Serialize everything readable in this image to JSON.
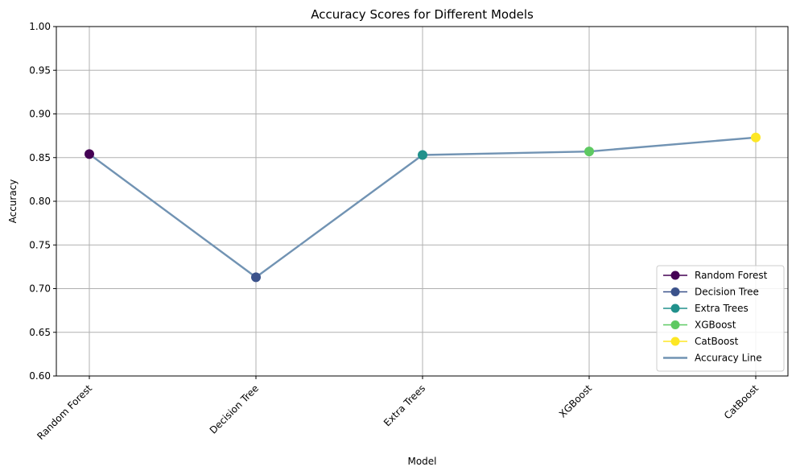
{
  "chart_data": {
    "type": "line",
    "title": "Accuracy Scores for Different Models",
    "xlabel": "Model",
    "ylabel": "Accuracy",
    "categories": [
      "Random Forest",
      "Decision Tree",
      "Extra Trees",
      "XGBoost",
      "CatBoost"
    ],
    "values": [
      0.854,
      0.713,
      0.853,
      0.857,
      0.873
    ],
    "ylim": [
      0.6,
      1.0
    ],
    "yticks": [
      "0.60",
      "0.65",
      "0.70",
      "0.75",
      "0.80",
      "0.85",
      "0.90",
      "0.95",
      "1.00"
    ],
    "grid": true,
    "legend_position": "lower-right",
    "markers": [
      {
        "name": "Random Forest",
        "color": "#440154"
      },
      {
        "name": "Decision Tree",
        "color": "#3b528b"
      },
      {
        "name": "Extra Trees",
        "color": "#21918c"
      },
      {
        "name": "XGBoost",
        "color": "#5ec962"
      },
      {
        "name": "CatBoost",
        "color": "#fde725"
      }
    ],
    "line_series": {
      "name": "Accuracy Line",
      "color": "#7193b3"
    }
  }
}
